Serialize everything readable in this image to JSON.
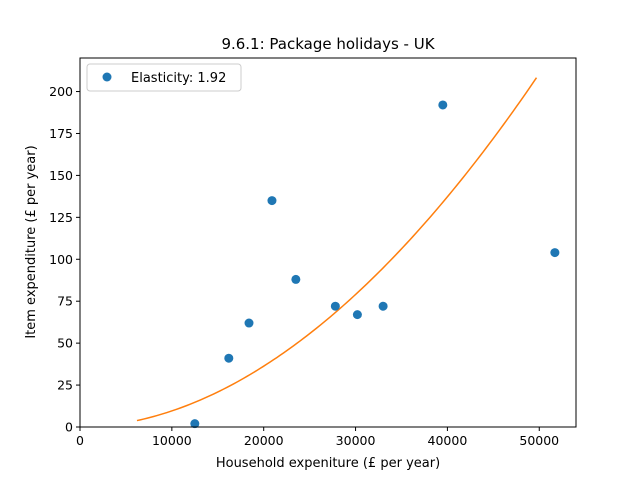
{
  "chart_data": {
    "type": "scatter",
    "title": "9.6.1: Package holidays - UK",
    "xlabel": "Household expeniture (£ per year)",
    "ylabel": "Item expenditure (£ per year)",
    "xlim": [
      0,
      54000
    ],
    "ylim": [
      0,
      220
    ],
    "xticks": [
      0,
      10000,
      20000,
      30000,
      40000,
      50000
    ],
    "yticks": [
      0,
      25,
      50,
      75,
      100,
      125,
      150,
      175,
      200
    ],
    "grid": false,
    "legend_position": "top-left",
    "series": [
      {
        "name": "Elasticity: 1.92",
        "kind": "points",
        "color": "#1f77b4",
        "points": [
          {
            "x": 12500,
            "y": 2
          },
          {
            "x": 16200,
            "y": 41
          },
          {
            "x": 18400,
            "y": 62
          },
          {
            "x": 20900,
            "y": 135
          },
          {
            "x": 23500,
            "y": 88
          },
          {
            "x": 27800,
            "y": 72
          },
          {
            "x": 30200,
            "y": 67
          },
          {
            "x": 33000,
            "y": 72
          },
          {
            "x": 39500,
            "y": 192
          },
          {
            "x": 51700,
            "y": 104
          }
        ]
      },
      {
        "kind": "fit-curve",
        "color": "#ff7f0e",
        "elasticity": 1.92,
        "x_range": [
          6200,
          49700
        ],
        "anchor": {
          "x": 30000,
          "y": 79
        }
      }
    ]
  }
}
